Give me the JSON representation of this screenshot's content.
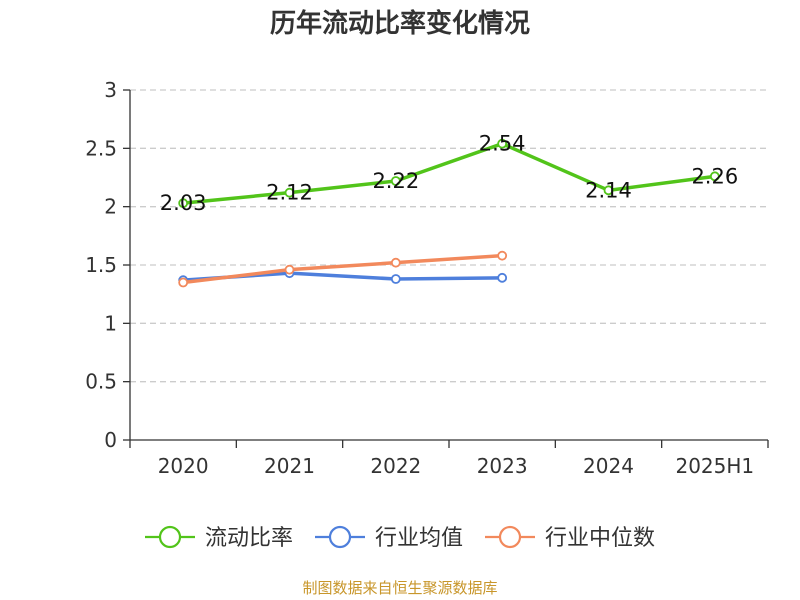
{
  "chart_data": {
    "type": "line",
    "title": "历年流动比率变化情况",
    "categories": [
      "2020",
      "2021",
      "2022",
      "2023",
      "2024",
      "2025H1"
    ],
    "ylim": [
      0,
      3
    ],
    "yticks": [
      "0",
      "0.5",
      "1",
      "1.5",
      "2",
      "2.5",
      "3"
    ],
    "grid": true,
    "legend_position": "bottom",
    "series": [
      {
        "name": "流动比率",
        "color": "#52c41a",
        "values": [
          2.03,
          2.12,
          2.22,
          2.54,
          2.14,
          2.26
        ],
        "labels": [
          "2.03",
          "2.12",
          "2.22",
          "2.54",
          "2.14",
          "2.26"
        ]
      },
      {
        "name": "行业均值",
        "color": "#4e7fdc",
        "values": [
          1.37,
          1.43,
          1.38,
          1.39,
          null,
          null
        ]
      },
      {
        "name": "行业中位数",
        "color": "#f2895c",
        "values": [
          1.35,
          1.46,
          1.52,
          1.58,
          null,
          null
        ]
      }
    ],
    "source": "制图数据来自恒生聚源数据库"
  }
}
